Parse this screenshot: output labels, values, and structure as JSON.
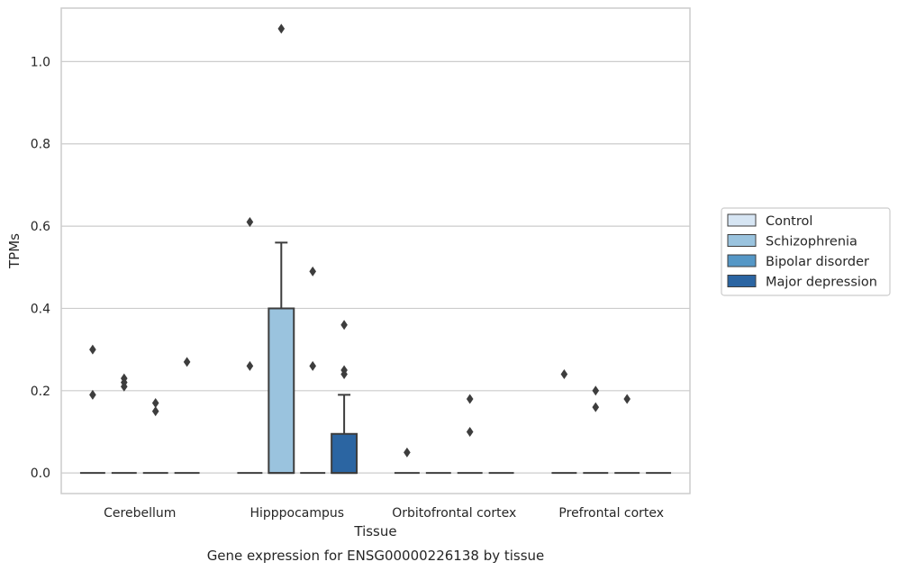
{
  "chart_data": {
    "type": "boxplot",
    "title": "",
    "xlabel": "Tissue",
    "ylabel": "TPMs",
    "caption": "Gene expression for ENSG00000226138 by tissue",
    "ylim": [
      -0.05,
      1.13
    ],
    "yticks": [
      0.0,
      0.2,
      0.4,
      0.6,
      0.8,
      1.0
    ],
    "ytick_labels": [
      "0.0",
      "0.2",
      "0.4",
      "0.6",
      "0.8",
      "1.0"
    ],
    "grid": "horizontal",
    "legend_position": "right",
    "categories": [
      "Cerebellum",
      "Hipppocampus",
      "Orbitofrontal cortex",
      "Prefrontal cortex"
    ],
    "series": [
      {
        "name": "Control",
        "color": "#d6e5f3",
        "boxes": [
          {
            "q1": 0,
            "median": 0,
            "q3": 0,
            "whisker_low": 0,
            "whisker_high": 0,
            "outliers": [
              0.19,
              0.3
            ]
          },
          {
            "q1": 0,
            "median": 0,
            "q3": 0,
            "whisker_low": 0,
            "whisker_high": 0,
            "outliers": [
              0.26,
              0.61
            ]
          },
          {
            "q1": 0,
            "median": 0,
            "q3": 0,
            "whisker_low": 0,
            "whisker_high": 0,
            "outliers": [
              0.05
            ]
          },
          {
            "q1": 0,
            "median": 0,
            "q3": 0,
            "whisker_low": 0,
            "whisker_high": 0,
            "outliers": [
              0.24
            ]
          }
        ]
      },
      {
        "name": "Schizophrenia",
        "color": "#9ac3de",
        "boxes": [
          {
            "q1": 0,
            "median": 0,
            "q3": 0,
            "whisker_low": 0,
            "whisker_high": 0,
            "outliers": [
              0.21,
              0.22,
              0.23
            ]
          },
          {
            "q1": 0,
            "median": 0,
            "q3": 0.4,
            "whisker_low": 0,
            "whisker_high": 0.56,
            "outliers": [
              1.08
            ]
          },
          {
            "q1": 0,
            "median": 0,
            "q3": 0,
            "whisker_low": 0,
            "whisker_high": 0,
            "outliers": []
          },
          {
            "q1": 0,
            "median": 0,
            "q3": 0,
            "whisker_low": 0,
            "whisker_high": 0,
            "outliers": [
              0.16,
              0.2
            ]
          }
        ]
      },
      {
        "name": "Bipolar disorder",
        "color": "#5597c6",
        "boxes": [
          {
            "q1": 0,
            "median": 0,
            "q3": 0,
            "whisker_low": 0,
            "whisker_high": 0,
            "outliers": [
              0.15,
              0.17
            ]
          },
          {
            "q1": 0,
            "median": 0,
            "q3": 0,
            "whisker_low": 0,
            "whisker_high": 0,
            "outliers": [
              0.26,
              0.49
            ]
          },
          {
            "q1": 0,
            "median": 0,
            "q3": 0,
            "whisker_low": 0,
            "whisker_high": 0,
            "outliers": [
              0.1,
              0.18
            ]
          },
          {
            "q1": 0,
            "median": 0,
            "q3": 0,
            "whisker_low": 0,
            "whisker_high": 0,
            "outliers": [
              0.18
            ]
          }
        ]
      },
      {
        "name": "Major depression",
        "color": "#2b65a2",
        "boxes": [
          {
            "q1": 0,
            "median": 0,
            "q3": 0,
            "whisker_low": 0,
            "whisker_high": 0,
            "outliers": [
              0.27
            ]
          },
          {
            "q1": 0,
            "median": 0,
            "q3": 0.095,
            "whisker_low": 0,
            "whisker_high": 0.19,
            "outliers": [
              0.24,
              0.25,
              0.36
            ]
          },
          {
            "q1": 0,
            "median": 0,
            "q3": 0,
            "whisker_low": 0,
            "whisker_high": 0,
            "outliers": []
          },
          {
            "q1": 0,
            "median": 0,
            "q3": 0,
            "whisker_low": 0,
            "whisker_high": 0,
            "outliers": []
          }
        ]
      }
    ]
  }
}
